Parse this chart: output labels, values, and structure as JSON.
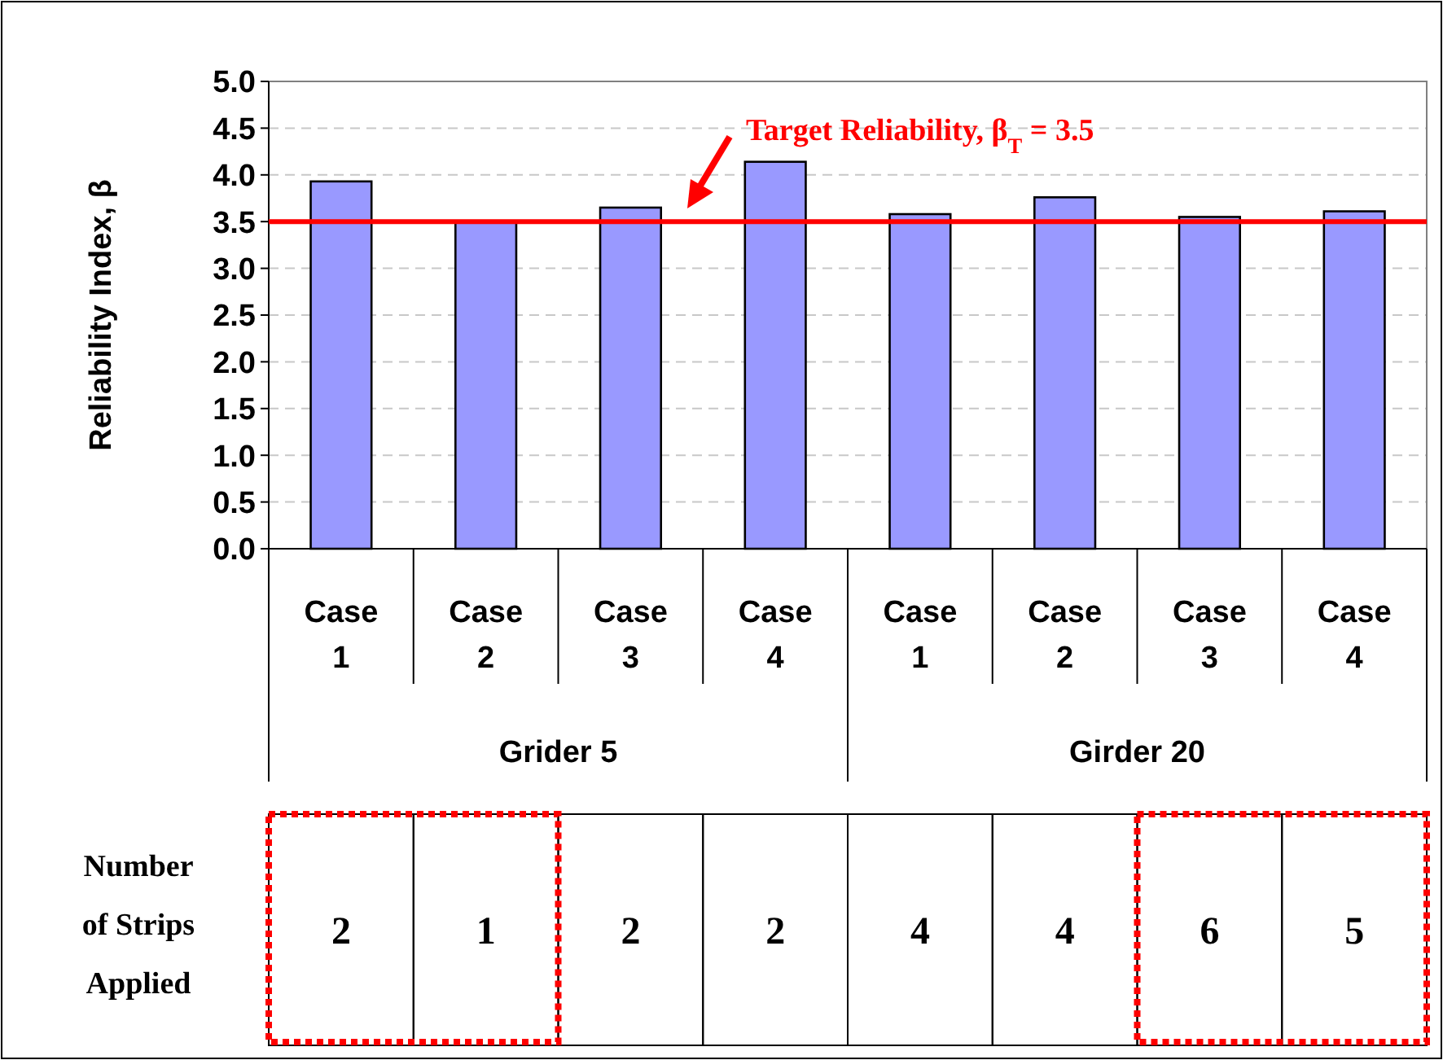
{
  "chart_data": {
    "type": "bar",
    "ylabel": "Reliability Index, β",
    "categories": [
      "Case 1",
      "Case 2",
      "Case 3",
      "Case 4",
      "Case 1",
      "Case 2",
      "Case 3",
      "Case 4"
    ],
    "values": [
      3.93,
      3.5,
      3.65,
      4.14,
      3.58,
      3.76,
      3.55,
      3.61
    ],
    "color": "#9999ff",
    "ylim": [
      0,
      5
    ],
    "yticks": [
      {
        "value": 0,
        "label": "0.0"
      },
      {
        "value": 0.5,
        "label": "0.5"
      },
      {
        "value": 1,
        "label": "1.0"
      },
      {
        "value": 1.5,
        "label": "1.5"
      },
      {
        "value": 2,
        "label": "2.0"
      },
      {
        "value": 2.5,
        "label": "2.5"
      },
      {
        "value": 3,
        "label": "3.0"
      },
      {
        "value": 3.5,
        "label": "3.5"
      },
      {
        "value": 4,
        "label": "4.0"
      },
      {
        "value": 4.5,
        "label": "4.5"
      },
      {
        "value": 5,
        "label": "5.0"
      }
    ],
    "grid": "y",
    "ref_lines": [
      {
        "axis": "y",
        "value": 3.5,
        "label": "Target Reliability, β$_{T}$ = 3.5",
        "color": "#ff0000"
      }
    ],
    "annotations": [
      "Grider 5",
      "Girder 20",
      "Number of Strips Applied",
      "2",
      "1",
      "2",
      "2",
      "4",
      "4",
      "6",
      "5"
    ]
  }
}
